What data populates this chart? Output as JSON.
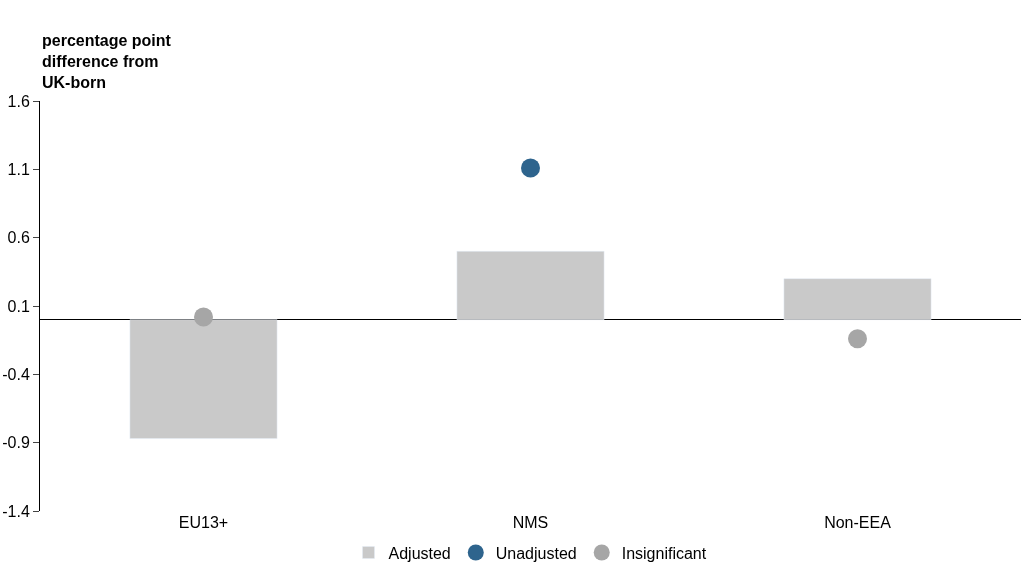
{
  "chart_data": {
    "type": "bar",
    "ylabel": "percentage point difference from UK-born",
    "categories": [
      "EU13+",
      "NMS",
      "Non-EEA"
    ],
    "series": [
      {
        "name": "Adjusted",
        "color": "#c9c9c9",
        "values": [
          -0.87,
          0.5,
          0.3
        ]
      },
      {
        "name": "Unadjusted",
        "type": "scatter",
        "color": "#2e648d",
        "values": [
          null,
          1.11,
          null
        ]
      },
      {
        "name": "Insignificant",
        "type": "scatter",
        "color": "#a6a6a6",
        "values": [
          0.02,
          null,
          -0.14
        ]
      }
    ],
    "ylim": [
      -1.4,
      1.6
    ],
    "yticks": [
      1.6,
      1.1,
      0.6,
      0.1,
      -0.4,
      -0.9,
      -1.4
    ],
    "legend": "bottom",
    "marker": "circle"
  }
}
